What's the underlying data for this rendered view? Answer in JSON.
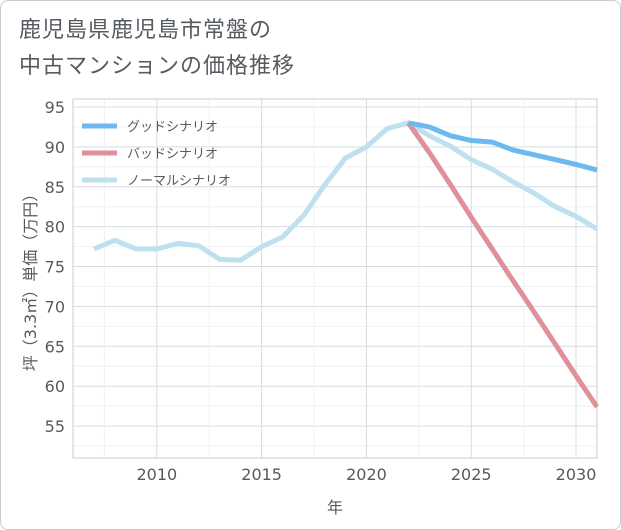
{
  "title": "鹿児島県鹿児島市常盤の\n中古マンションの価格推移",
  "chart_data": {
    "type": "line",
    "title": "鹿児島県鹿児島市常盤の中古マンションの価格推移",
    "xlabel": "年",
    "ylabel": "坪（3.3㎡）単価（万円）",
    "xlim": [
      2006,
      2031
    ],
    "ylim": [
      51,
      96
    ],
    "xticks": [
      2010,
      2015,
      2020,
      2025,
      2030
    ],
    "yticks": [
      55,
      60,
      65,
      70,
      75,
      80,
      85,
      90,
      95
    ],
    "grid": true,
    "legend_position": "top-left",
    "series": [
      {
        "name": "グッドシナリオ",
        "color": "#6cb9ee",
        "x": [
          2022,
          2023,
          2024,
          2025,
          2026,
          2027,
          2028,
          2029,
          2030,
          2031
        ],
        "y": [
          93.0,
          92.5,
          91.4,
          90.8,
          90.6,
          89.6,
          89.0,
          88.4,
          87.8,
          87.1
        ]
      },
      {
        "name": "バッドシナリオ",
        "color": "#e0909a",
        "x": [
          2022,
          2023,
          2024,
          2025,
          2026,
          2027,
          2028,
          2029,
          2030,
          2031
        ],
        "y": [
          93.0,
          89.3,
          85.3,
          81.2,
          77.2,
          73.2,
          69.3,
          65.3,
          61.3,
          57.4
        ]
      },
      {
        "name": "ノーマルシナリオ",
        "color": "#bfe0ef",
        "x": [
          2007,
          2008,
          2009,
          2010,
          2011,
          2012,
          2013,
          2014,
          2015,
          2016,
          2017,
          2018,
          2019,
          2020,
          2021,
          2022,
          2023,
          2024,
          2025,
          2026,
          2027,
          2028,
          2029,
          2030,
          2031
        ],
        "y": [
          77.2,
          78.3,
          77.2,
          77.2,
          77.9,
          77.6,
          75.9,
          75.8,
          77.5,
          78.7,
          81.4,
          85.2,
          88.6,
          90.0,
          92.3,
          93.0,
          91.4,
          90.1,
          88.4,
          87.2,
          85.6,
          84.2,
          82.5,
          81.3,
          79.7
        ]
      }
    ]
  }
}
